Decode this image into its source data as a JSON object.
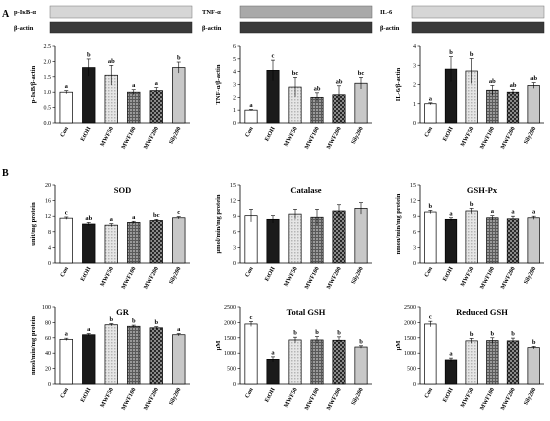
{
  "panel_labels": [
    "A",
    "B"
  ],
  "western_blots": [
    {
      "protein": "p-IκB-α",
      "loading": "β-actin"
    },
    {
      "protein": "TNF-α",
      "loading": "β-actin"
    },
    {
      "protein": "IL-6",
      "loading": "β-actin"
    }
  ],
  "colors": {
    "bar_fills": [
      "#ffffff",
      "#1a1a1a",
      "pattern-dots-light",
      "pattern-grid",
      "pattern-checker",
      "#c8c8c8"
    ],
    "bar_stroke": "#000000"
  },
  "chart_data": [
    {
      "type": "bar",
      "title": "",
      "ylabel": "p-IκB/β-actin",
      "categories": [
        "Con",
        "EtOH",
        "MWF50",
        "MWF100",
        "MWF200",
        "Sily200"
      ],
      "values": [
        1.0,
        1.8,
        1.55,
        1.0,
        1.05,
        1.8
      ],
      "errors": [
        0.05,
        0.28,
        0.32,
        0.08,
        0.1,
        0.18
      ],
      "labels": [
        "a",
        "b",
        "ab",
        "a",
        "a",
        "b"
      ],
      "ylim": [
        0,
        2.5
      ],
      "yticks": [
        "0.0",
        "0.5",
        "1.0",
        "1.5",
        "2.0",
        "2.5"
      ]
    },
    {
      "type": "bar",
      "title": "",
      "ylabel": "TNF-α/β-actin",
      "categories": [
        "Con",
        "EtOH",
        "MWF50",
        "MWF100",
        "MWF200",
        "Sily200"
      ],
      "values": [
        1.0,
        4.1,
        2.8,
        2.0,
        2.2,
        3.1
      ],
      "errors": [
        0.05,
        0.8,
        0.75,
        0.35,
        0.7,
        0.45
      ],
      "labels": [
        "a",
        "c",
        "bc",
        "ab",
        "ab",
        "bc"
      ],
      "ylim": [
        0,
        6
      ],
      "yticks": [
        "0",
        "1",
        "2",
        "3",
        "4",
        "5",
        "6"
      ]
    },
    {
      "type": "bar",
      "title": "",
      "ylabel": "IL-6/β-actin",
      "categories": [
        "Con",
        "EtOH",
        "MWF50",
        "MWF100",
        "MWF200",
        "Sily200"
      ],
      "values": [
        1.0,
        2.8,
        2.7,
        1.7,
        1.6,
        1.95
      ],
      "errors": [
        0.05,
        0.65,
        0.65,
        0.25,
        0.15,
        0.15
      ],
      "labels": [
        "a",
        "b",
        "b",
        "ab",
        "ab",
        "ab"
      ],
      "ylim": [
        0,
        4
      ],
      "yticks": [
        "0",
        "1",
        "2",
        "3",
        "4"
      ]
    },
    {
      "type": "bar",
      "title": "SOD",
      "ylabel": "unit/mg protein",
      "categories": [
        "Con",
        "EtOH",
        "MWF50",
        "MWF100",
        "MWF200",
        "Sily200"
      ],
      "values": [
        11.5,
        10.0,
        9.7,
        10.4,
        10.9,
        11.6
      ],
      "errors": [
        0.3,
        0.4,
        0.4,
        0.3,
        0.3,
        0.3
      ],
      "labels": [
        "c",
        "ab",
        "a",
        "a",
        "bc",
        "c"
      ],
      "ylim": [
        0,
        20
      ],
      "yticks": [
        "0",
        "4",
        "8",
        "12",
        "16",
        "20"
      ]
    },
    {
      "type": "bar",
      "title": "Catalase",
      "ylabel": "μmol/min/mg protein",
      "categories": [
        "Con",
        "EtOH",
        "MWF50",
        "MWF100",
        "MWF200",
        "Sily200"
      ],
      "values": [
        9.1,
        8.4,
        9.4,
        8.8,
        10.0,
        10.5
      ],
      "errors": [
        1.2,
        0.7,
        0.9,
        1.5,
        1.2,
        1.1
      ],
      "labels": [],
      "ylim": [
        0,
        15
      ],
      "yticks": [
        "0",
        "3",
        "6",
        "9",
        "12",
        "15"
      ]
    },
    {
      "type": "bar",
      "title": "GSH-Px",
      "ylabel": "nmon/min/mg protein",
      "categories": [
        "Con",
        "EtOH",
        "MWF50",
        "MWF100",
        "MWF200",
        "Sily200"
      ],
      "values": [
        9.8,
        8.4,
        10.0,
        8.7,
        8.5,
        8.7
      ],
      "errors": [
        0.3,
        0.3,
        0.5,
        0.4,
        0.5,
        0.3
      ],
      "labels": [
        "b",
        "a",
        "b",
        "a",
        "a",
        "a"
      ],
      "ylim": [
        0,
        15
      ],
      "yticks": [
        "0",
        "3",
        "6",
        "9",
        "12",
        "15"
      ]
    },
    {
      "type": "bar",
      "title": "GR",
      "ylabel": "nmol/min/mg protein",
      "categories": [
        "Con",
        "EtOH",
        "MWF50",
        "MWF100",
        "MWF200",
        "Sily200"
      ],
      "values": [
        58,
        64,
        77,
        75,
        73,
        64
      ],
      "errors": [
        1.5,
        1.5,
        1.5,
        1.5,
        1.5,
        1.5
      ],
      "labels": [
        "a",
        "a",
        "b",
        "b",
        "b",
        "a"
      ],
      "ylim": [
        0,
        100
      ],
      "yticks": [
        "0",
        "20",
        "40",
        "60",
        "80",
        "100"
      ]
    },
    {
      "type": "bar",
      "title": "Total GSH",
      "ylabel": "μM",
      "categories": [
        "Con",
        "EtOH",
        "MWF50",
        "MWF100",
        "MWF200",
        "Sily200"
      ],
      "values": [
        1950,
        800,
        1430,
        1430,
        1420,
        1200
      ],
      "errors": [
        80,
        80,
        90,
        110,
        110,
        40
      ],
      "labels": [
        "c",
        "a",
        "b",
        "b",
        "b",
        "b"
      ],
      "ylim": [
        0,
        2500
      ],
      "yticks": [
        "0",
        "500",
        "1000",
        "1500",
        "2000",
        "2500"
      ]
    },
    {
      "type": "bar",
      "title": "Reduced GSH",
      "ylabel": "μM",
      "categories": [
        "Con",
        "EtOH",
        "MWF50",
        "MWF100",
        "MWF200",
        "Sily200"
      ],
      "values": [
        1950,
        780,
        1400,
        1410,
        1400,
        1180
      ],
      "errors": [
        90,
        60,
        80,
        90,
        90,
        40
      ],
      "labels": [
        "c",
        "a",
        "b",
        "b",
        "b",
        "b"
      ],
      "ylim": [
        0,
        2500
      ],
      "yticks": [
        "0",
        "500",
        "1000",
        "1500",
        "2000",
        "2500"
      ]
    }
  ]
}
